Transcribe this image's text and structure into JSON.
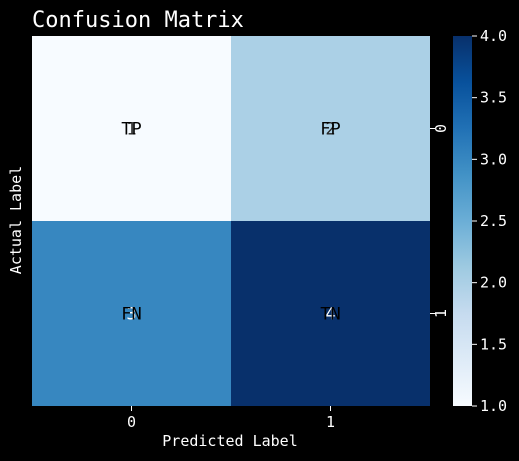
{
  "chart_data": {
    "type": "heatmap",
    "title": "Confusion Matrix",
    "xlabel": "Predicted Label",
    "ylabel": "Actual Label",
    "x_categories": [
      "0",
      "1"
    ],
    "y_categories": [
      "0",
      "1"
    ],
    "values": [
      [
        1,
        2
      ],
      [
        3,
        4
      ]
    ],
    "annotations": [
      [
        "TP",
        "FP"
      ],
      [
        "FN",
        "TN"
      ]
    ],
    "colormap": "Blues",
    "colorbar": {
      "min": 1.0,
      "max": 4.0,
      "ticks": [
        "1.0",
        "1.5",
        "2.0",
        "2.5",
        "3.0",
        "3.5",
        "4.0"
      ]
    },
    "colors": {
      "background": "#000000",
      "text": "#ffffff",
      "cell_low": "#f7fbff",
      "cell_high": "#08306b"
    }
  }
}
